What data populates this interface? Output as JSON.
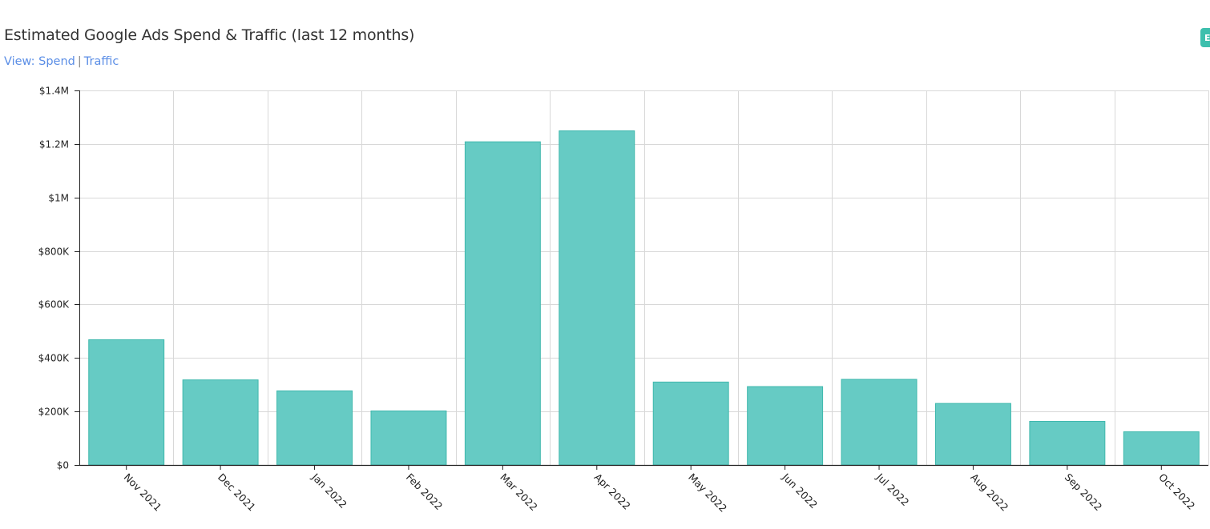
{
  "header": {
    "title": "Estimated Google Ads Spend & Traffic (last 12 months)",
    "view_prefix": "View:",
    "view_spend": "Spend",
    "view_separator": "|",
    "view_traffic": "Traffic",
    "corner_button_label": "E"
  },
  "colors": {
    "bar_fill": "#66cbc4",
    "bar_stroke": "#3fb8ad",
    "grid": "#d8d8d8",
    "axis": "#222222",
    "link": "#5b8ee6",
    "accent": "#3dbfad"
  },
  "chart_data": {
    "type": "bar",
    "title": "Estimated Google Ads Spend & Traffic (last 12 months)",
    "xlabel": "",
    "ylabel": "",
    "categories": [
      "Nov 2021",
      "Dec 2021",
      "Jan 2022",
      "Feb 2022",
      "Mar 2022",
      "Apr 2022",
      "May 2022",
      "Jun 2022",
      "Jul 2022",
      "Aug 2022",
      "Sep 2022",
      "Oct 2022"
    ],
    "values": [
      468000,
      318000,
      277000,
      202000,
      1208000,
      1249000,
      310000,
      293000,
      320000,
      230000,
      163000,
      124000
    ],
    "ylim": [
      0,
      1400000
    ],
    "yticks": [
      0,
      200000,
      400000,
      600000,
      800000,
      1000000,
      1200000,
      1400000
    ],
    "ytick_labels": [
      "$0",
      "$200K",
      "$400K",
      "$600K",
      "$800K",
      "$1M",
      "$1.2M",
      "$1.4M"
    ],
    "grid": true,
    "legend": "none"
  }
}
